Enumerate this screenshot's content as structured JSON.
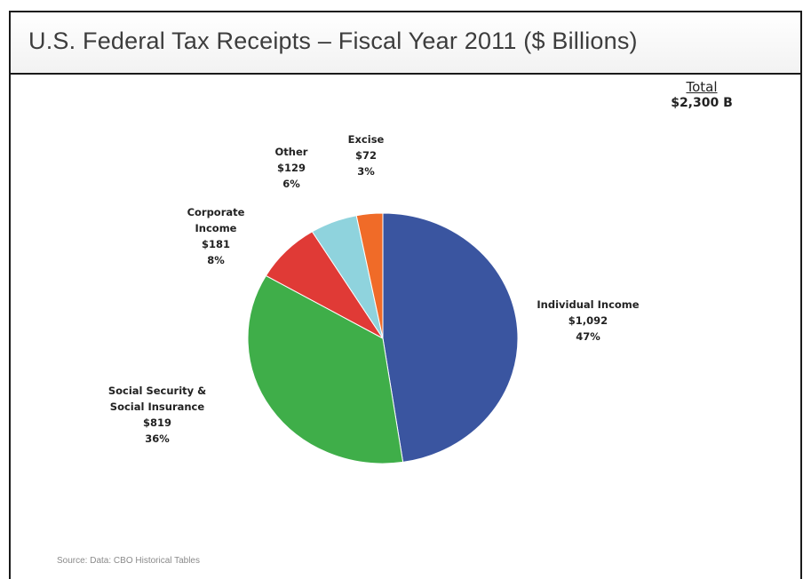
{
  "chart_data": {
    "type": "pie",
    "title": "U.S. Federal Tax Receipts – Fiscal Year 2011 ($ Billions)",
    "total_heading": "Total",
    "total_value": "$2,300 B",
    "slices": [
      {
        "lines": [
          "Individual Income",
          "$1,092",
          "47%"
        ],
        "value": 1092,
        "color": "#3a55a0"
      },
      {
        "lines": [
          "Social Security &",
          "Social Insurance",
          "$819",
          "36%"
        ],
        "value": 819,
        "color": "#3fae49"
      },
      {
        "lines": [
          "Corporate",
          "Income",
          "$181",
          "8%"
        ],
        "value": 181,
        "color": "#e03a36"
      },
      {
        "lines": [
          "Other",
          "$129",
          "6%"
        ],
        "value": 129,
        "color": "#8fd3dd"
      },
      {
        "lines": [
          "Excise",
          "$72",
          "3%"
        ],
        "value": 72,
        "color": "#f06b28"
      }
    ],
    "source": "Source: Data: CBO Historical Tables"
  }
}
